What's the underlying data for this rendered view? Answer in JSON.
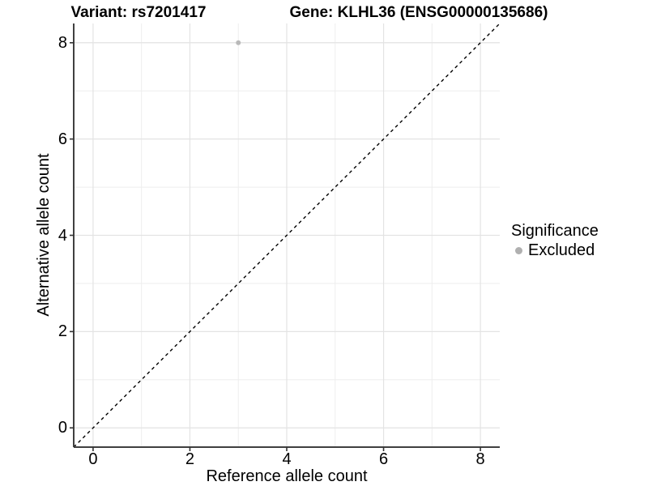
{
  "chart_data": {
    "type": "scatter",
    "titles": {
      "left": "Variant: rs7201417",
      "right": "Gene: KLHL36 (ENSG00000135686)"
    },
    "xlabel": "Reference allele count",
    "ylabel": "Alternative allele count",
    "xlim": [
      -0.4,
      8.4
    ],
    "ylim": [
      -0.4,
      8.4
    ],
    "x_ticks": [
      0,
      2,
      4,
      6,
      8
    ],
    "y_ticks": [
      0,
      2,
      4,
      6,
      8
    ],
    "x_minor_ticks": [
      1,
      3,
      5,
      7
    ],
    "y_minor_ticks": [
      1,
      3,
      5,
      7
    ],
    "grid": {
      "major_color": "#e3e3e3",
      "minor_color": "#eeeeee"
    },
    "axis_line_color": "#404040",
    "tick_color": "#333333",
    "identity_line": {
      "style": "dashed",
      "slope": 1,
      "intercept": 0,
      "color": "#000000"
    },
    "series": [
      {
        "name": "Excluded",
        "color": "#b9b9b9",
        "points": [
          [
            3,
            8
          ]
        ]
      }
    ],
    "legend": {
      "title": "Significance",
      "position": "right",
      "items": [
        {
          "label": "Excluded",
          "color": "#b0b0b0",
          "marker": "circle"
        }
      ]
    }
  }
}
